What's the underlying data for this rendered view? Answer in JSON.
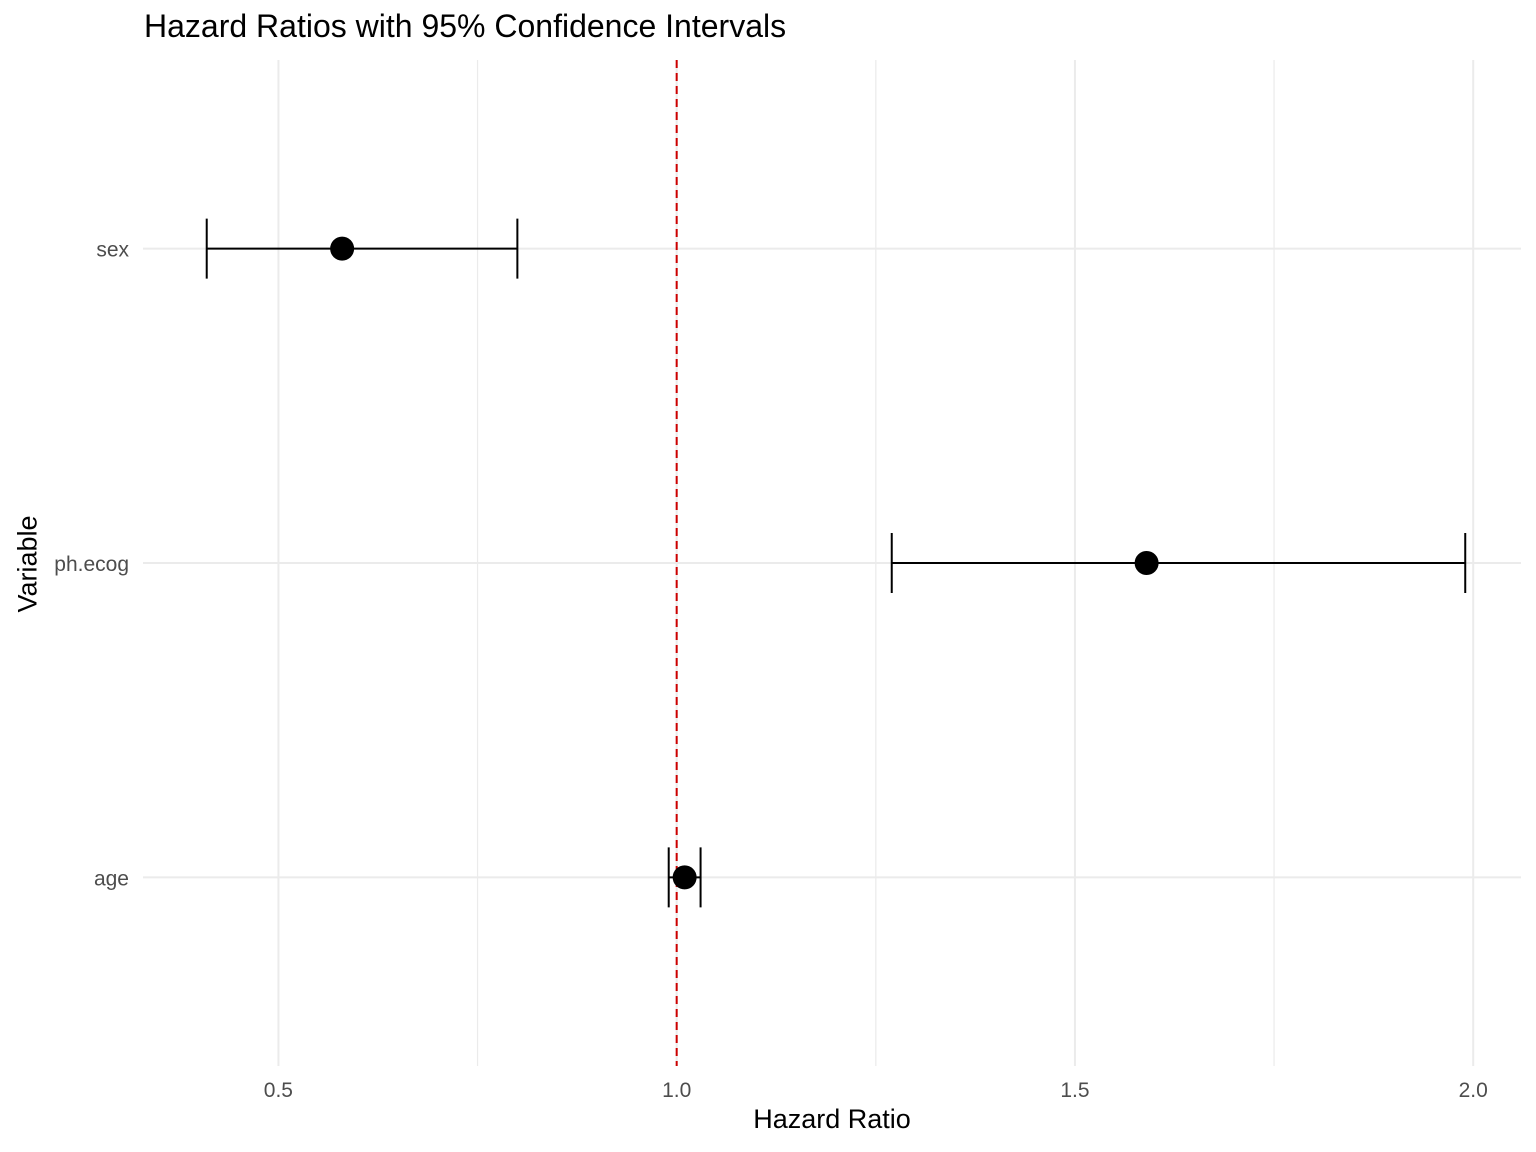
{
  "chart_data": {
    "type": "scatter",
    "subtype": "forest-plot",
    "title": "Hazard Ratios with 95% Confidence Intervals",
    "xlabel": "Hazard Ratio",
    "ylabel": "Variable",
    "xlim": [
      0.33,
      2.06
    ],
    "x_ticks": [
      "0.5",
      "1.0",
      "1.5",
      "2.0"
    ],
    "x_tick_values": [
      0.5,
      1.0,
      1.5,
      2.0
    ],
    "categories": [
      "age",
      "ph.ecog",
      "sex"
    ],
    "series": [
      {
        "points": [
          {
            "variable": "age",
            "hr": 1.01,
            "lower": 0.99,
            "upper": 1.03
          },
          {
            "variable": "ph.ecog",
            "hr": 1.59,
            "lower": 1.27,
            "upper": 1.99
          },
          {
            "variable": "sex",
            "hr": 0.58,
            "lower": 0.41,
            "upper": 0.8
          }
        ]
      }
    ],
    "reference_line": {
      "x": 1.0,
      "color": "#cc0000",
      "style": "dashed"
    },
    "grid": true,
    "colors": {
      "point": "#000000",
      "errorbar": "#000000",
      "grid": "#ebebeb",
      "tick_text": "#4d4d4d"
    }
  }
}
